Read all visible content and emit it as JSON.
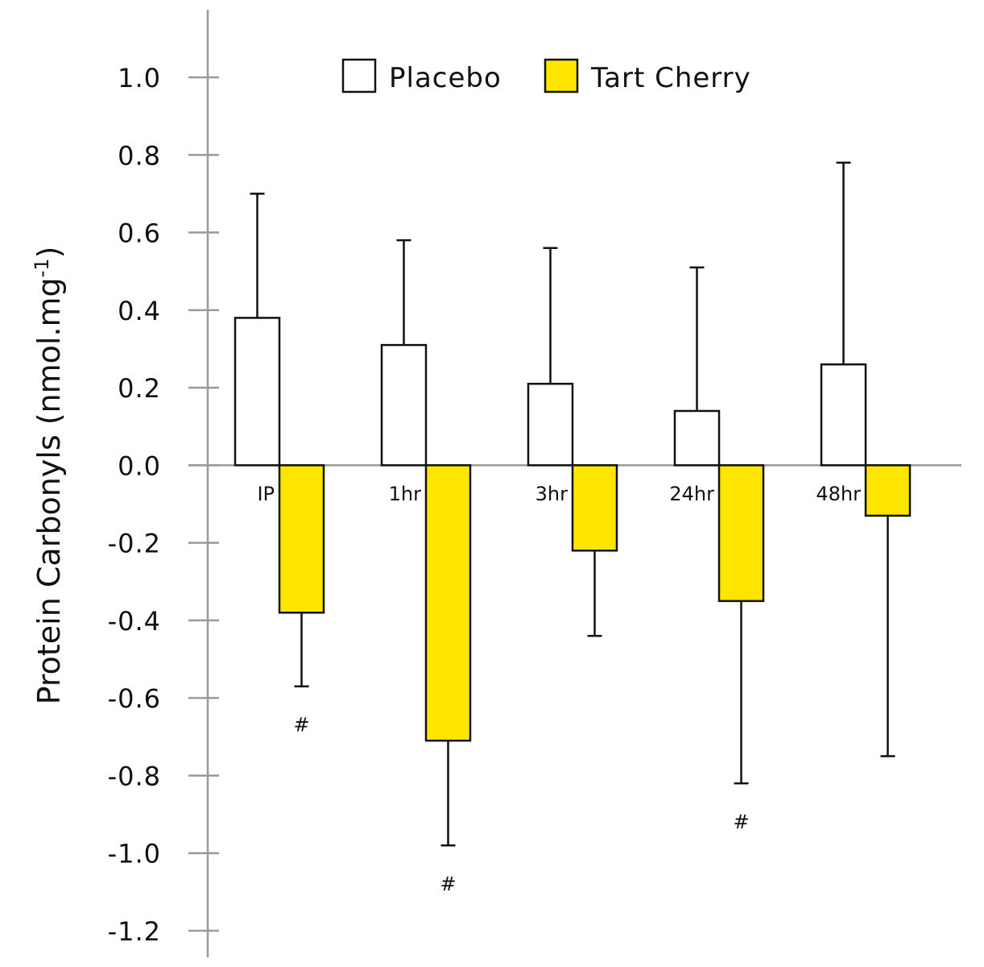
{
  "chart_data": {
    "type": "bar",
    "ylabel": "Protein Carbonyls (nmol.mg",
    "ylabel_sup": "-1",
    "ylabel_close": ")",
    "ylim": [
      -1.2,
      1.0
    ],
    "yticks": [
      1.0,
      0.8,
      0.6,
      0.4,
      0.2,
      0.0,
      -0.2,
      -0.4,
      -0.6,
      -0.8,
      -1.0,
      -1.2
    ],
    "ytick_labels": [
      "1.0",
      "0.8",
      "0.6",
      "0.4",
      "0.2",
      "0.0",
      "-0.2",
      "-0.4",
      "-0.6",
      "-0.8",
      "-1.0",
      "-1.2"
    ],
    "categories": [
      "IP",
      "1hr",
      "3hr",
      "24hr",
      "48hr"
    ],
    "legend_position": "top",
    "series": [
      {
        "name": "Placebo",
        "color": "#ffffff",
        "values": [
          0.38,
          0.31,
          0.21,
          0.14,
          0.26
        ],
        "error_upper": [
          0.7,
          0.58,
          0.56,
          0.51,
          0.78
        ]
      },
      {
        "name": "Tart Cherry",
        "color": "#ffe600",
        "values": [
          -0.38,
          -0.71,
          -0.22,
          -0.35,
          -0.13
        ],
        "error_lower": [
          -0.57,
          -0.98,
          -0.44,
          -0.82,
          -0.75
        ]
      }
    ],
    "annotations": [
      {
        "category": "IP",
        "series": "Tart Cherry",
        "text": "#"
      },
      {
        "category": "1hr",
        "series": "Tart Cherry",
        "text": "#"
      },
      {
        "category": "24hr",
        "series": "Tart Cherry",
        "text": "#"
      }
    ]
  }
}
